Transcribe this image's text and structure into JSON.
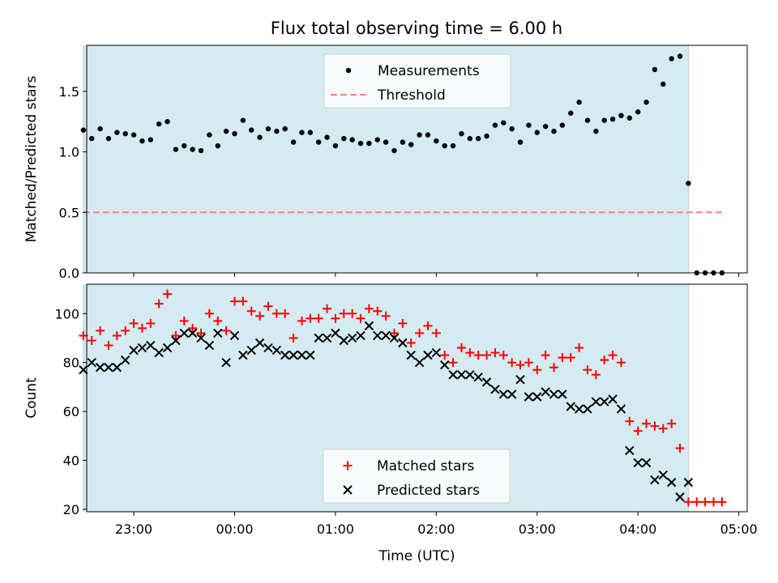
{
  "title": "Flux total observing time = 6.00 h",
  "chart_data": [
    {
      "type": "scatter",
      "panel": "top",
      "ylabel": "Matched/Predicted stars",
      "ylim": [
        0,
        1.88
      ],
      "yticks": [
        0.0,
        0.5,
        1.0,
        1.5
      ],
      "ytick_labels": [
        "0.0",
        "0.5",
        "1.0",
        "1.5"
      ],
      "xlim": [
        "22:32",
        "05:05"
      ],
      "shaded_range": [
        "22:30",
        "04:30"
      ],
      "shade_color": "#d4ebf1",
      "legend_position": "upper-center",
      "series": [
        {
          "name": "Measurements",
          "marker": "dot",
          "color": "#000000",
          "x": [
            "22:30",
            "22:35",
            "22:40",
            "22:45",
            "22:50",
            "22:55",
            "23:00",
            "23:05",
            "23:10",
            "23:15",
            "23:20",
            "23:25",
            "23:30",
            "23:35",
            "23:40",
            "23:45",
            "23:50",
            "23:55",
            "00:00",
            "00:05",
            "00:10",
            "00:15",
            "00:20",
            "00:25",
            "00:30",
            "00:35",
            "00:40",
            "00:45",
            "00:50",
            "00:55",
            "01:00",
            "01:05",
            "01:10",
            "01:15",
            "01:20",
            "01:25",
            "01:30",
            "01:35",
            "01:40",
            "01:45",
            "01:50",
            "01:55",
            "02:00",
            "02:05",
            "02:10",
            "02:15",
            "02:20",
            "02:25",
            "02:30",
            "02:35",
            "02:40",
            "02:45",
            "02:50",
            "02:55",
            "03:00",
            "03:05",
            "03:10",
            "03:15",
            "03:20",
            "03:25",
            "03:30",
            "03:35",
            "03:40",
            "03:45",
            "03:50",
            "03:55",
            "04:00",
            "04:05",
            "04:10",
            "04:15",
            "04:20",
            "04:25",
            "04:30",
            "04:35",
            "04:40",
            "04:45",
            "04:50"
          ],
          "y": [
            1.18,
            1.11,
            1.19,
            1.11,
            1.16,
            1.15,
            1.14,
            1.09,
            1.1,
            1.23,
            1.25,
            1.02,
            1.05,
            1.02,
            1.01,
            1.14,
            1.05,
            1.17,
            1.15,
            1.26,
            1.18,
            1.12,
            1.19,
            1.17,
            1.19,
            1.08,
            1.16,
            1.16,
            1.08,
            1.12,
            1.05,
            1.11,
            1.1,
            1.07,
            1.07,
            1.1,
            1.08,
            1.01,
            1.08,
            1.06,
            1.14,
            1.14,
            1.09,
            1.05,
            1.05,
            1.15,
            1.11,
            1.11,
            1.13,
            1.22,
            1.24,
            1.19,
            1.08,
            1.22,
            1.16,
            1.21,
            1.17,
            1.22,
            1.32,
            1.41,
            1.26,
            1.17,
            1.26,
            1.27,
            1.3,
            1.28,
            1.33,
            1.41,
            1.68,
            1.56,
            1.77,
            1.79,
            0.74,
            0.0,
            0.0,
            0.0,
            0.0
          ]
        },
        {
          "name": "Threshold",
          "marker": "dashed-line",
          "color": "#ff7f7f",
          "x": [
            "22:30",
            "04:50"
          ],
          "y": [
            0.5,
            0.5
          ]
        }
      ]
    },
    {
      "type": "scatter",
      "panel": "bottom",
      "ylabel": "Count",
      "xlabel": "Time (UTC)",
      "ylim": [
        19,
        112
      ],
      "yticks": [
        20,
        40,
        60,
        80,
        100
      ],
      "ytick_labels": [
        "20",
        "40",
        "60",
        "80",
        "100"
      ],
      "xlim": [
        "22:32",
        "05:05"
      ],
      "xticks": [
        "23:00",
        "00:00",
        "01:00",
        "02:00",
        "03:00",
        "04:00",
        "05:00"
      ],
      "xtick_labels": [
        "23:00",
        "00:00",
        "01:00",
        "02:00",
        "03:00",
        "04:00",
        "05:00"
      ],
      "shaded_range": [
        "22:30",
        "04:30"
      ],
      "shade_color": "#d4ebf1",
      "legend_position": "lower-center",
      "series": [
        {
          "name": "Matched stars",
          "marker": "plus",
          "color": "#ff0000",
          "x": [
            "22:30",
            "22:35",
            "22:40",
            "22:45",
            "22:50",
            "22:55",
            "23:00",
            "23:05",
            "23:10",
            "23:15",
            "23:20",
            "23:25",
            "23:30",
            "23:35",
            "23:40",
            "23:45",
            "23:50",
            "23:55",
            "00:00",
            "00:05",
            "00:10",
            "00:15",
            "00:20",
            "00:25",
            "00:30",
            "00:35",
            "00:40",
            "00:45",
            "00:50",
            "00:55",
            "01:00",
            "01:05",
            "01:10",
            "01:15",
            "01:20",
            "01:25",
            "01:30",
            "01:35",
            "01:40",
            "01:45",
            "01:50",
            "01:55",
            "02:00",
            "02:05",
            "02:10",
            "02:15",
            "02:20",
            "02:25",
            "02:30",
            "02:35",
            "02:40",
            "02:45",
            "02:50",
            "02:55",
            "03:00",
            "03:05",
            "03:10",
            "03:15",
            "03:20",
            "03:25",
            "03:30",
            "03:35",
            "03:40",
            "03:45",
            "03:50",
            "03:55",
            "04:00",
            "04:05",
            "04:10",
            "04:15",
            "04:20",
            "04:25",
            "04:30",
            "04:35",
            "04:40",
            "04:45",
            "04:50"
          ],
          "y": [
            91,
            89,
            93,
            87,
            91,
            93,
            96,
            94,
            96,
            104,
            108,
            91,
            97,
            94,
            92,
            100,
            97,
            93,
            105,
            105,
            101,
            99,
            103,
            100,
            100,
            90,
            97,
            98,
            98,
            102,
            98,
            100,
            100,
            98,
            102,
            101,
            99,
            92,
            96,
            88,
            92,
            95,
            92,
            83,
            80,
            86,
            84,
            83,
            83,
            84,
            83,
            80,
            79,
            80,
            77,
            83,
            78,
            82,
            82,
            86,
            77,
            75,
            81,
            83,
            80,
            56,
            52,
            55,
            54,
            53,
            55,
            45,
            23,
            23,
            23,
            23,
            23
          ]
        },
        {
          "name": "Predicted stars",
          "marker": "x",
          "color": "#000000",
          "x": [
            "22:30",
            "22:35",
            "22:40",
            "22:45",
            "22:50",
            "22:55",
            "23:00",
            "23:05",
            "23:10",
            "23:15",
            "23:20",
            "23:25",
            "23:30",
            "23:35",
            "23:40",
            "23:45",
            "23:50",
            "23:55",
            "00:00",
            "00:05",
            "00:10",
            "00:15",
            "00:20",
            "00:25",
            "00:30",
            "00:35",
            "00:40",
            "00:45",
            "00:50",
            "00:55",
            "01:00",
            "01:05",
            "01:10",
            "01:15",
            "01:20",
            "01:25",
            "01:30",
            "01:35",
            "01:40",
            "01:45",
            "01:50",
            "01:55",
            "02:00",
            "02:05",
            "02:10",
            "02:15",
            "02:20",
            "02:25",
            "02:30",
            "02:35",
            "02:40",
            "02:45",
            "02:50",
            "02:55",
            "03:00",
            "03:05",
            "03:10",
            "03:15",
            "03:20",
            "03:25",
            "03:30",
            "03:35",
            "03:40",
            "03:45",
            "03:50",
            "03:55",
            "04:00",
            "04:05",
            "04:10",
            "04:15",
            "04:20",
            "04:25",
            "04:30"
          ],
          "y": [
            77,
            80,
            78,
            78,
            78,
            81,
            85,
            86,
            87,
            84,
            86,
            89,
            92,
            92,
            90,
            87,
            92,
            80,
            91,
            83,
            85,
            88,
            86,
            85,
            83,
            83,
            83,
            83,
            90,
            90,
            92,
            89,
            90,
            91,
            95,
            91,
            91,
            90,
            88,
            83,
            80,
            83,
            84,
            79,
            75,
            75,
            75,
            74,
            72,
            69,
            67,
            67,
            73,
            66,
            66,
            68,
            67,
            67,
            62,
            61,
            61,
            64,
            64,
            65,
            61,
            44,
            39,
            39,
            32,
            34,
            31,
            25,
            31
          ]
        }
      ]
    }
  ]
}
